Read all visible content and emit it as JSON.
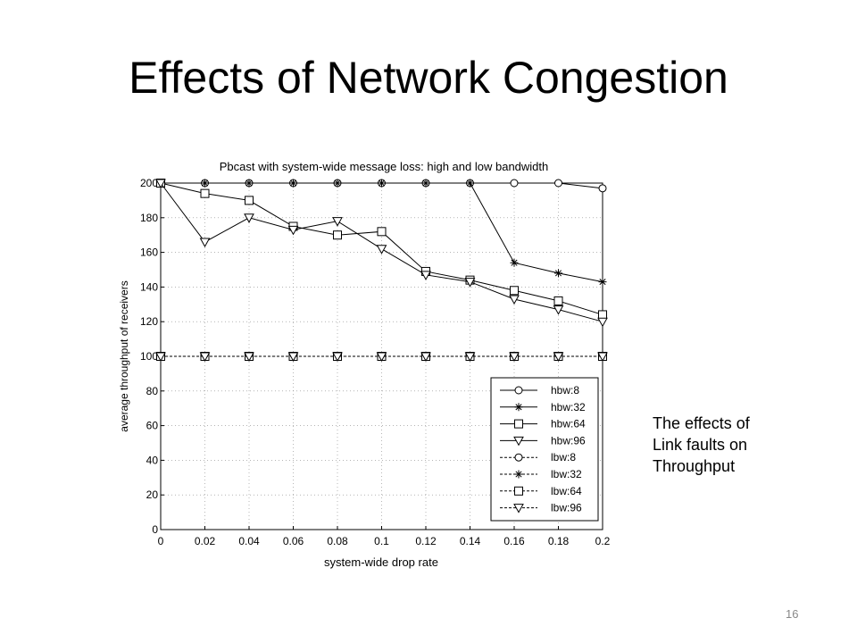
{
  "slide": {
    "title": "Effects of Network Congestion",
    "note_lines": [
      "The effects of",
      "Link faults on",
      "Throughput"
    ],
    "page_number": "16"
  },
  "chart_data": {
    "type": "line",
    "title": "Pbcast with system-wide message loss: high and low bandwidth",
    "xlabel": "system-wide drop rate",
    "ylabel": "average throughput of receivers",
    "x": [
      0,
      0.02,
      0.04,
      0.06,
      0.08,
      0.1,
      0.12,
      0.14,
      0.16,
      0.18,
      0.2
    ],
    "x_tick_labels": [
      "0",
      "0.02",
      "0.04",
      "0.06",
      "0.08",
      "0.1",
      "0.12",
      "0.14",
      "0.16",
      "0.18",
      "0.2"
    ],
    "y_ticks": [
      0,
      20,
      40,
      60,
      80,
      100,
      120,
      140,
      160,
      180,
      200
    ],
    "xlim": [
      0,
      0.2
    ],
    "ylim": [
      0,
      200
    ],
    "grid": true,
    "legend_position": "bottom-right",
    "series": [
      {
        "name": "hbw:8",
        "style": "solid",
        "marker": "circle",
        "values": [
          200,
          200,
          200,
          200,
          200,
          200,
          200,
          200,
          200,
          200,
          197
        ]
      },
      {
        "name": "hbw:32",
        "style": "solid",
        "marker": "star",
        "values": [
          200,
          200,
          200,
          200,
          200,
          200,
          200,
          200,
          154,
          148,
          143
        ]
      },
      {
        "name": "hbw:64",
        "style": "solid",
        "marker": "square",
        "values": [
          200,
          194,
          190,
          175,
          170,
          172,
          149,
          144,
          138,
          132,
          124
        ]
      },
      {
        "name": "hbw:96",
        "style": "solid",
        "marker": "triangle",
        "values": [
          200,
          166,
          180,
          173,
          178,
          162,
          147,
          143,
          133,
          127,
          120
        ]
      },
      {
        "name": "lbw:8",
        "style": "dashed",
        "marker": "circle",
        "values": [
          100,
          100,
          100,
          100,
          100,
          100,
          100,
          100,
          100,
          100,
          100
        ]
      },
      {
        "name": "lbw:32",
        "style": "dashed",
        "marker": "star",
        "values": [
          100,
          100,
          100,
          100,
          100,
          100,
          100,
          100,
          100,
          100,
          100
        ]
      },
      {
        "name": "lbw:64",
        "style": "dashed",
        "marker": "square",
        "values": [
          100,
          100,
          100,
          100,
          100,
          100,
          100,
          100,
          100,
          100,
          100
        ]
      },
      {
        "name": "lbw:96",
        "style": "dashed",
        "marker": "triangle",
        "values": [
          100,
          100,
          100,
          100,
          100,
          100,
          100,
          100,
          100,
          100,
          100
        ]
      }
    ]
  }
}
